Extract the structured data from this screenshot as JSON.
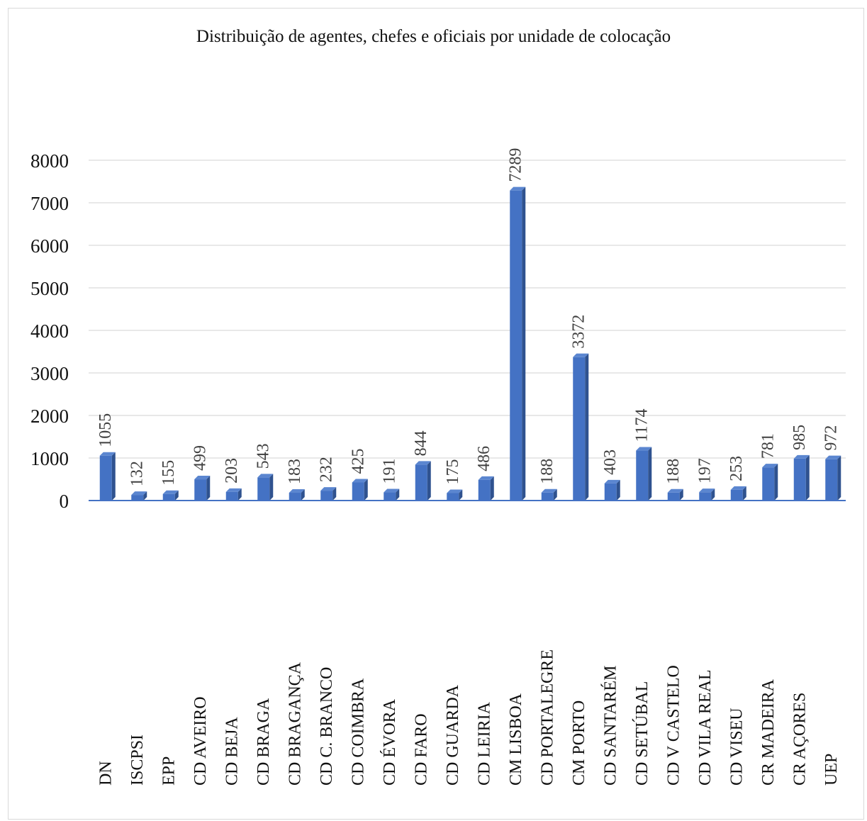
{
  "chart_data": {
    "type": "bar",
    "title": "Distribuição de agentes, chefes e oficiais por unidade de colocação",
    "xlabel": "",
    "ylabel": "",
    "ylim": [
      0,
      8000
    ],
    "yticks": [
      0,
      1000,
      2000,
      3000,
      4000,
      5000,
      6000,
      7000,
      8000
    ],
    "grid": true,
    "legend": "none",
    "bar_color": "#4472c4",
    "categories": [
      "DN",
      "ISCPSI",
      "EPP",
      "CD AVEIRO",
      "CD BEJA",
      "CD BRAGA",
      "CD BRAGANÇA",
      "CD C. BRANCO",
      "CD COIMBRA",
      "CD ÉVORA",
      "CD FARO",
      "CD GUARDA",
      "CD LEIRIA",
      "CM LISBOA",
      "CD PORTALEGRE",
      "CM PORTO",
      "CD SANTARÉM",
      "CD SETÚBAL",
      "CD V CASTELO",
      "CD VILA REAL",
      "CD VISEU",
      "CR MADEIRA",
      "CR AÇORES",
      "UEP"
    ],
    "values": [
      1055,
      132,
      155,
      499,
      203,
      543,
      183,
      232,
      425,
      191,
      844,
      175,
      486,
      7289,
      188,
      3372,
      403,
      1174,
      188,
      197,
      253,
      781,
      985,
      972
    ]
  }
}
